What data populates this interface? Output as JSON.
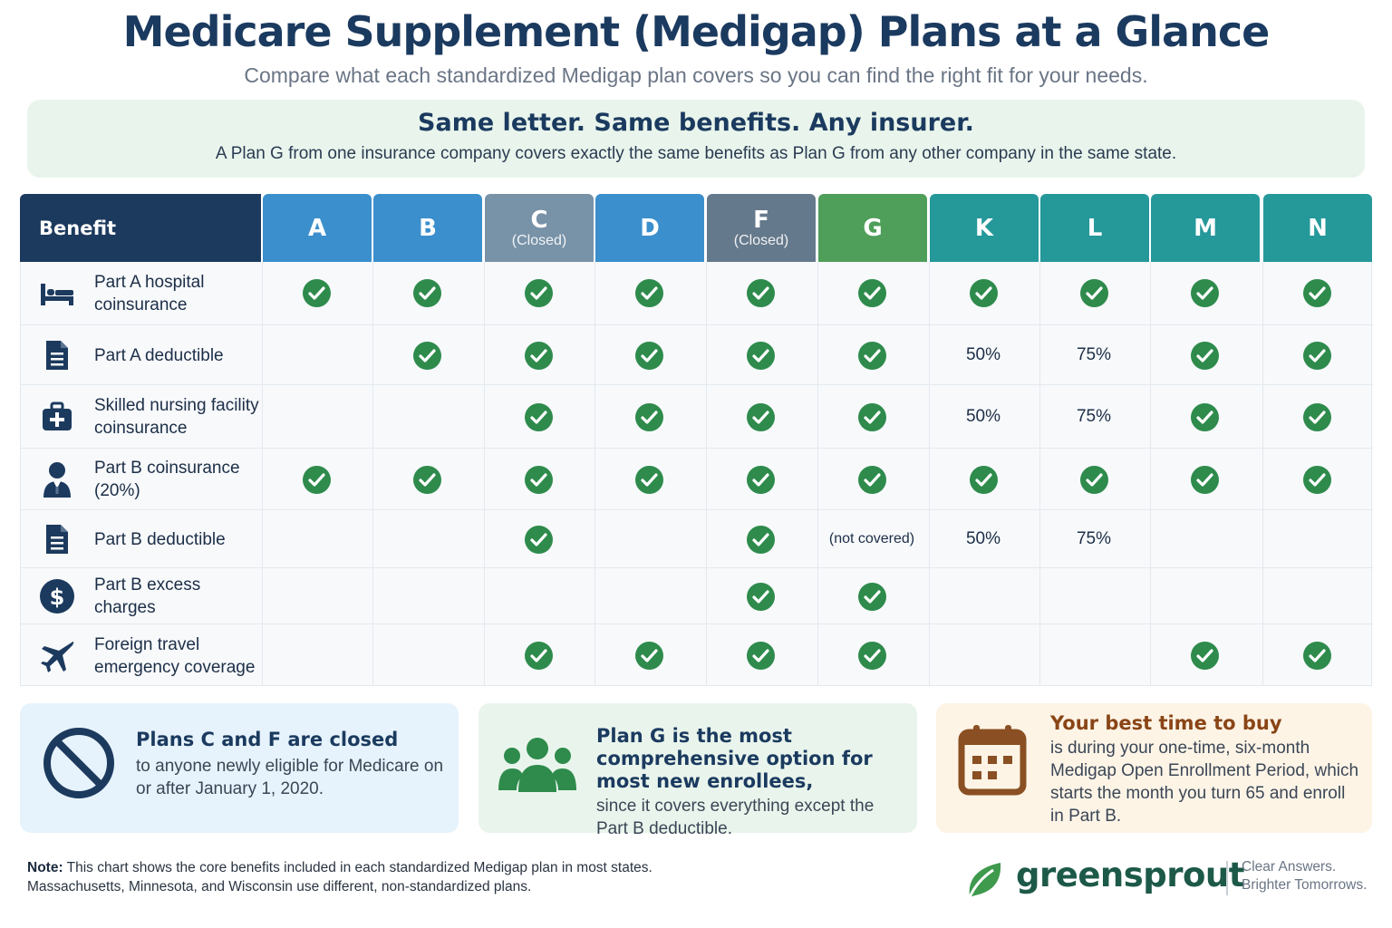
{
  "title": "Medicare Supplement (Medigap) Plans at a Glance",
  "subtitle": "Compare what each standardized Medigap plan covers so you can find the right fit for your needs.",
  "banner": {
    "heading": "Same letter. Same benefits. Any insurer.",
    "text": "A Plan G from one insurance company covers exactly the same benefits as Plan G from any other company in the same state."
  },
  "table": {
    "benefit_header": "Benefit",
    "plans": [
      {
        "letter": "A",
        "sub": "",
        "color": "#3b8fcc"
      },
      {
        "letter": "B",
        "sub": "",
        "color": "#3b8fcc"
      },
      {
        "letter": "C",
        "sub": "(Closed)",
        "color": "#7892a8"
      },
      {
        "letter": "D",
        "sub": "",
        "color": "#3b8fcc"
      },
      {
        "letter": "F",
        "sub": "(Closed)",
        "color": "#65798c"
      },
      {
        "letter": "G",
        "sub": "",
        "color": "#4f9e5a"
      },
      {
        "letter": "K",
        "sub": "",
        "color": "#25989a"
      },
      {
        "letter": "L",
        "sub": "",
        "color": "#25989a"
      },
      {
        "letter": "M",
        "sub": "",
        "color": "#25989a"
      },
      {
        "letter": "N",
        "sub": "",
        "color": "#25989a"
      }
    ],
    "rows": [
      {
        "icon": "bed-icon",
        "label": "Part A hospital coinsurance",
        "cells": [
          "check",
          "check",
          "check",
          "check",
          "check",
          "check",
          "check",
          "check",
          "check",
          "check"
        ]
      },
      {
        "icon": "document-icon",
        "label": "Part A deductible",
        "cells": [
          "",
          "check",
          "check",
          "check",
          "check",
          "check",
          "50%",
          "75%",
          "check",
          "check"
        ]
      },
      {
        "icon": "medical-kit-icon",
        "label": "Skilled nursing facility coinsurance",
        "cells": [
          "",
          "",
          "check",
          "check",
          "check",
          "check",
          "50%",
          "75%",
          "check",
          "check"
        ]
      },
      {
        "icon": "doctor-icon",
        "label": "Part B coinsurance (20%)",
        "cells": [
          "check",
          "check",
          "check",
          "check",
          "check",
          "check",
          "check",
          "check",
          "check",
          "check"
        ]
      },
      {
        "icon": "document-icon",
        "label": "Part B deductible",
        "cells": [
          "",
          "",
          "check",
          "",
          "check",
          "(not covered)",
          "50%",
          "75%",
          "",
          ""
        ]
      },
      {
        "icon": "dollar-icon",
        "label": "Part B excess charges",
        "cells": [
          "",
          "",
          "",
          "",
          "check",
          "check",
          "",
          "",
          "",
          ""
        ]
      },
      {
        "icon": "airplane-icon",
        "label": "Foreign travel emergency coverage",
        "cells": [
          "",
          "",
          "check",
          "check",
          "check",
          "check",
          "",
          "",
          "check",
          "check"
        ]
      }
    ]
  },
  "cards": [
    {
      "icon": "prohibited-icon",
      "heading": "Plans C and F are closed",
      "text": "to anyone newly eligible for Medicare on or after January 1, 2020."
    },
    {
      "icon": "people-group-icon",
      "heading": "Plan G is the most comprehensive option for most new enrollees,",
      "text": "since it covers everything except the Part B deductible."
    },
    {
      "icon": "calendar-icon",
      "heading": "Your best time to buy",
      "text": "is during your one-time, six-month Medigap Open Enrollment Period, which starts the month you turn 65 and enroll in Part B."
    }
  ],
  "note": {
    "label": "Note:",
    "line1": "This chart shows the core benefits included in each standardized Medigap plan in most states.",
    "line2": "Massachusetts, Minnesota, and Wisconsin use different, non-standardized plans."
  },
  "brand": {
    "name": "greensprout",
    "tagline_1": "Clear Answers.",
    "tagline_2": "Brighter Tomorrows.",
    "logo_icon": "leaf-icon",
    "color": "#1d5948"
  },
  "colors": {
    "navy": "#1c3a5e",
    "check_green": "#2e8b4c"
  }
}
